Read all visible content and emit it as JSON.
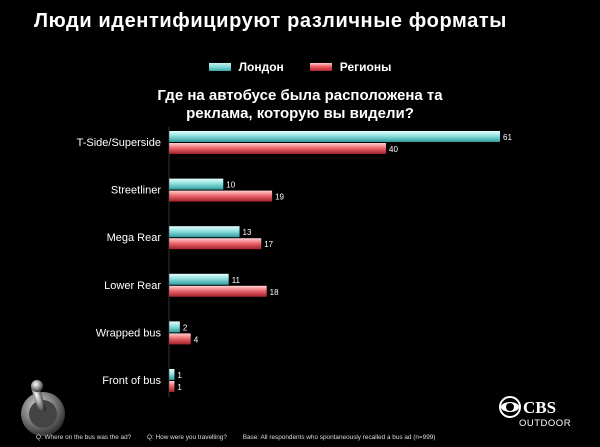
{
  "slide": {
    "title": "Люди идентифицируют различные форматы"
  },
  "chart_data": {
    "type": "bar",
    "orientation": "horizontal",
    "title_lines": [
      "Где на автобусе была расположена та",
      "реклама, которую вы видели?"
    ],
    "categories": [
      "T-Side/Superside",
      "Streetliner",
      "Mega Rear",
      "Lower Rear",
      "Wrapped bus",
      "Front of bus"
    ],
    "series": [
      {
        "name": "Лондон",
        "values": [
          61,
          10,
          13,
          11,
          2,
          1
        ],
        "color": "#7fd8d8"
      },
      {
        "name": "Регионы",
        "values": [
          40,
          19,
          17,
          18,
          4,
          1
        ],
        "color": "#e8585f"
      }
    ],
    "xlim": [
      0,
      61
    ],
    "grid": false,
    "legend_position": "top-center",
    "data_labels": true
  },
  "footer": {
    "q1": "Q:  Where on the bus was the ad?",
    "q2": "Q:  How were you travelling?",
    "base": "Base: All respondents who spontaneously recalled a bus ad  (n=999)"
  },
  "logo": {
    "name": "CBS",
    "sub": "OUTDOOR",
    "icon": "cbs-eye-icon"
  },
  "ornament": {
    "icon": "lever-switch-icon"
  }
}
